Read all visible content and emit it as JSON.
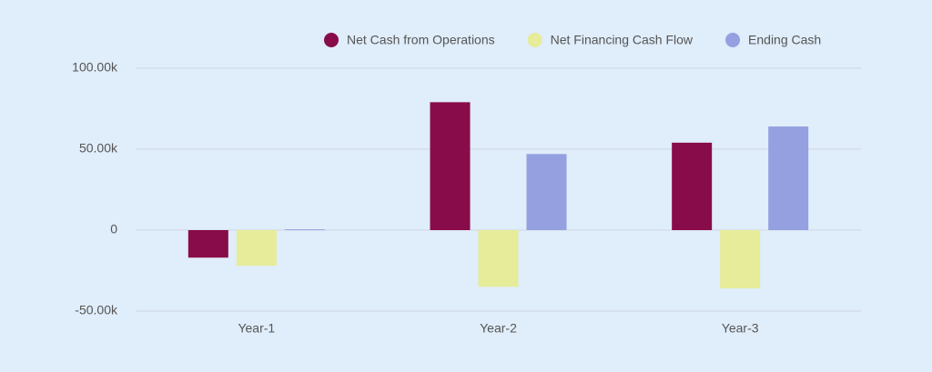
{
  "chart_data": {
    "type": "bar",
    "categories": [
      "Year-1",
      "Year-2",
      "Year-3"
    ],
    "series": [
      {
        "name": "Net Cash from Operations",
        "color": "#880c4a",
        "values": [
          -17000,
          79000,
          54000
        ]
      },
      {
        "name": "Net Financing Cash Flow",
        "color": "#e6ec99",
        "values": [
          -22000,
          -35000,
          -36000
        ]
      },
      {
        "name": "Ending Cash",
        "color": "#95a0e0",
        "values": [
          500,
          47000,
          64000
        ]
      }
    ],
    "ylim": [
      -50000,
      100000
    ],
    "yticks": [
      {
        "value": -50000,
        "label": "-50.00k"
      },
      0,
      {
        "value": 50000,
        "label": "50.00k"
      },
      {
        "value": 100000,
        "label": "100.00k"
      }
    ],
    "grid": true,
    "legend": "top"
  }
}
